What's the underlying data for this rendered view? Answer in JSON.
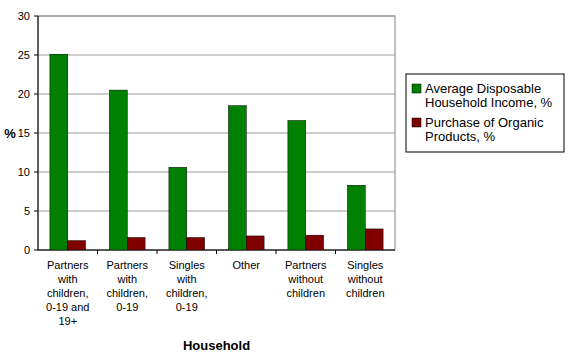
{
  "chart_data": {
    "type": "bar",
    "x_label": "Household",
    "y_label": "%",
    "categories": [
      "Partners with children, 0-19 and 19+",
      "Partners with children, 0-19",
      "Singles with children, 0-19",
      "Other",
      "Partners without children",
      "Singles without children"
    ],
    "series": [
      {
        "name": "Average Disposable Household Income, %",
        "color": "#008000",
        "values": [
          25.1,
          20.5,
          10.6,
          18.5,
          16.6,
          8.3
        ]
      },
      {
        "name": "Purchase of Organic Products, %",
        "color": "#800000",
        "values": [
          1.2,
          1.6,
          1.6,
          1.8,
          1.9,
          2.7
        ]
      }
    ],
    "ylim": [
      0,
      30
    ],
    "yticks": [
      0,
      5,
      10,
      15,
      20,
      25,
      30
    ],
    "grid": true,
    "legend": "right"
  }
}
